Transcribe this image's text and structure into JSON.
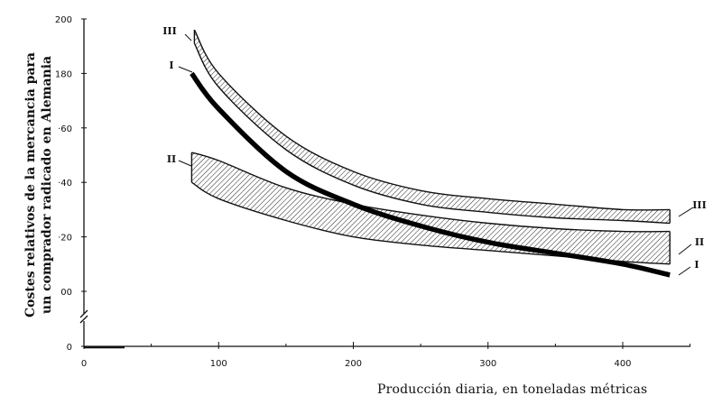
{
  "chart_data": {
    "type": "line",
    "xlabel": "Producción diaria, en toneladas métricas",
    "ylabel_lines": [
      "Costes relativos de la mercancia para",
      "un comprador radicado en Alemania"
    ],
    "x_ticks": [
      "0",
      "100",
      "200",
      "300",
      "400"
    ],
    "y_ticks": [
      "0",
      "00",
      "·20",
      "·40",
      "·60",
      "180",
      "200"
    ],
    "xlim": [
      0,
      440
    ],
    "ylim": [
      100,
      200
    ],
    "y_axis_break": true,
    "series": [
      {
        "name": "I",
        "style": "thick-line",
        "x": [
          80,
          100,
          150,
          200,
          250,
          300,
          350,
          400,
          435
        ],
        "y": [
          180,
          167,
          144,
          132,
          124,
          118,
          114,
          110,
          106
        ]
      },
      {
        "name": "II",
        "style": "hatched-band",
        "x": [
          80,
          100,
          150,
          200,
          250,
          300,
          350,
          400,
          435
        ],
        "upper": [
          151,
          148,
          138,
          132,
          128,
          125,
          123,
          122,
          122
        ],
        "lower": [
          140,
          134,
          126,
          120,
          117,
          115,
          113,
          111,
          110
        ]
      },
      {
        "name": "III",
        "style": "hatched-band",
        "x": [
          82,
          100,
          150,
          200,
          250,
          300,
          350,
          400,
          435
        ],
        "upper": [
          196,
          180,
          157,
          144,
          137,
          134,
          132,
          130,
          130
        ],
        "lower": [
          191,
          175,
          152,
          139,
          132,
          129,
          127,
          126,
          125
        ]
      }
    ],
    "left_labels": [
      "III",
      "I",
      "II"
    ],
    "right_labels": [
      "III",
      "II",
      "I"
    ]
  }
}
